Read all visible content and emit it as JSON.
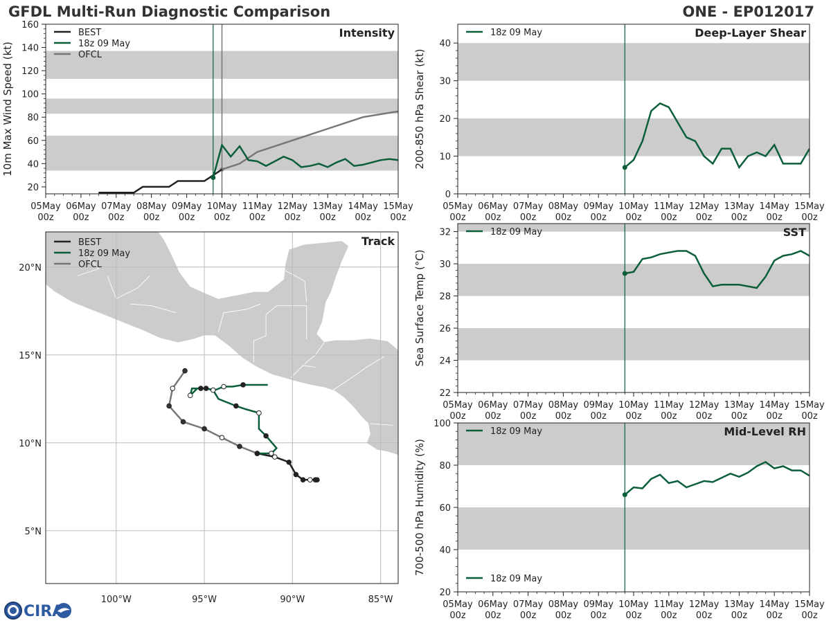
{
  "header": {
    "title": "GFDL Multi-Run Diagnostic Comparison",
    "storm_id": "ONE - EP012017"
  },
  "logo": {
    "text": "CIRA"
  },
  "colors": {
    "best": "#222222",
    "run": "#0b5e3a",
    "ofcl": "#777777",
    "band": "#cccccc",
    "land": "#cccccc"
  },
  "time_axis": {
    "ticks": [
      [
        "05May",
        "00z"
      ],
      [
        "06May",
        "00z"
      ],
      [
        "07May",
        "00z"
      ],
      [
        "08May",
        "00z"
      ],
      [
        "09May",
        "00z"
      ],
      [
        "10May",
        "00z"
      ],
      [
        "11May",
        "00z"
      ],
      [
        "12May",
        "00z"
      ],
      [
        "13May",
        "00z"
      ],
      [
        "14May",
        "00z"
      ],
      [
        "15May",
        "00z"
      ]
    ],
    "init_time": 4.75,
    "ofcl_time": 5.0
  },
  "chart_data": [
    {
      "type": "line",
      "panel": "Intensity",
      "title": "Intensity",
      "ylabel": "10m Max Wind Speed (kt)",
      "ylim": [
        14,
        160
      ],
      "yticks": [
        20,
        40,
        60,
        80,
        100,
        120,
        140,
        160
      ],
      "bands": [
        [
          34,
          64
        ],
        [
          83,
          96
        ],
        [
          113,
          137
        ]
      ],
      "legend": [
        "BEST",
        "18z 09 May",
        "OFCL"
      ],
      "series": [
        {
          "name": "BEST",
          "x": [
            1.5,
            1.75,
            2.0,
            2.25,
            2.5,
            2.75,
            3.0,
            3.25,
            3.5,
            3.75,
            4.0,
            4.25,
            4.5,
            4.75,
            5.0
          ],
          "y": [
            15,
            15,
            15,
            15,
            15,
            20,
            20,
            20,
            20,
            25,
            25,
            25,
            25,
            30,
            35
          ]
        },
        {
          "name": "18z 09 May",
          "x": [
            4.75,
            5.0,
            5.25,
            5.5,
            5.75,
            6.0,
            6.25,
            6.5,
            6.75,
            7.0,
            7.25,
            7.5,
            7.75,
            8.0,
            8.25,
            8.5,
            8.75,
            9.0,
            9.25,
            9.5,
            9.75,
            10.0
          ],
          "y": [
            28,
            56,
            46,
            55,
            43,
            42,
            38,
            42,
            46,
            43,
            37,
            38,
            40,
            37,
            41,
            44,
            38,
            39,
            41,
            43,
            44,
            43
          ]
        },
        {
          "name": "OFCL",
          "x": [
            5.0,
            5.5,
            6.0,
            7.0,
            8.0,
            9.0,
            10.0
          ],
          "y": [
            35,
            40,
            50,
            60,
            70,
            80,
            85
          ]
        }
      ]
    },
    {
      "type": "map",
      "panel": "Track",
      "title": "Track",
      "xlim": [
        -104,
        -84
      ],
      "ylim": [
        2,
        22
      ],
      "xticks": [
        -100,
        -95,
        -90,
        -85
      ],
      "xtick_labels": [
        "100°W",
        "95°W",
        "90°W",
        "85°W"
      ],
      "yticks": [
        5,
        10,
        15,
        20
      ],
      "ytick_labels": [
        "5°N",
        "10°N",
        "15°N",
        "20°N"
      ],
      "legend": [
        "BEST",
        "18z 09 May",
        "OFCL"
      ],
      "series": [
        {
          "name": "BEST",
          "lon": [
            -88.6,
            -88.7,
            -89.0,
            -89.4,
            -89.8,
            -90.2,
            -91.0,
            -92.0
          ],
          "lat": [
            7.9,
            7.9,
            7.9,
            7.9,
            8.2,
            8.9,
            9.2,
            9.4
          ]
        },
        {
          "name": "18z 09 May",
          "lon": [
            -92.0,
            -91.3,
            -91.2,
            -90.9,
            -91.5,
            -91.9,
            -91.9,
            -92.6,
            -93.2,
            -94.2,
            -94.5,
            -94.9,
            -95.2,
            -95.4,
            -95.8,
            -95.7,
            -94.9,
            -94.4,
            -93.9,
            -93.4,
            -92.8,
            -91.4
          ],
          "lat": [
            9.4,
            9.4,
            9.4,
            9.7,
            10.4,
            10.8,
            11.7,
            11.9,
            12.1,
            12.5,
            13.0,
            13.1,
            13.1,
            13.1,
            12.7,
            13.1,
            13.1,
            13.0,
            13.2,
            13.2,
            13.3,
            13.3
          ]
        },
        {
          "name": "OFCL",
          "lon": [
            -92.0,
            -93.0,
            -94.0,
            -95.0,
            -96.2,
            -97.0,
            -96.8,
            -96.1
          ],
          "lat": [
            9.4,
            9.8,
            10.3,
            10.8,
            11.2,
            12.1,
            13.1,
            14.1
          ]
        }
      ]
    },
    {
      "type": "line",
      "panel": "Deep-Layer Shear",
      "title": "Deep-Layer Shear",
      "ylabel": "200-850 hPa Shear (kt)",
      "ylim": [
        0,
        45
      ],
      "yticks": [
        0,
        10,
        20,
        30,
        40
      ],
      "bands": [
        [
          10,
          20
        ],
        [
          30,
          40
        ]
      ],
      "legend": [
        "18z 09 May"
      ],
      "series": [
        {
          "name": "18z 09 May",
          "x": [
            4.75,
            5.0,
            5.25,
            5.5,
            5.75,
            6.0,
            6.25,
            6.5,
            6.75,
            7.0,
            7.25,
            7.5,
            7.75,
            8.0,
            8.25,
            8.5,
            8.75,
            9.0,
            9.25,
            9.5,
            9.75,
            10.0
          ],
          "y": [
            7,
            9,
            14,
            22,
            24,
            23,
            19,
            15,
            14,
            10,
            8,
            12,
            12,
            7,
            10,
            11,
            10,
            13,
            8,
            8,
            8,
            12
          ]
        }
      ]
    },
    {
      "type": "line",
      "panel": "SST",
      "title": "SST",
      "ylabel": "Sea Surface Temp (°C)",
      "ylim": [
        22,
        32.5
      ],
      "yticks": [
        22,
        24,
        26,
        28,
        30,
        32
      ],
      "bands": [
        [
          24,
          26
        ],
        [
          28,
          30
        ],
        [
          32,
          33
        ]
      ],
      "legend": [
        "18z 09 May"
      ],
      "series": [
        {
          "name": "18z 09 May",
          "x": [
            4.75,
            5.0,
            5.25,
            5.5,
            5.75,
            6.0,
            6.25,
            6.5,
            6.75,
            7.0,
            7.25,
            7.5,
            7.75,
            8.0,
            8.25,
            8.5,
            8.75,
            9.0,
            9.25,
            9.5,
            9.75,
            10.0
          ],
          "y": [
            29.4,
            29.5,
            30.3,
            30.4,
            30.6,
            30.7,
            30.8,
            30.8,
            30.5,
            29.4,
            28.6,
            28.7,
            28.7,
            28.7,
            28.6,
            28.5,
            29.2,
            30.2,
            30.5,
            30.6,
            30.8,
            30.5
          ]
        }
      ]
    },
    {
      "type": "line",
      "panel": "Mid-Level RH",
      "title": "Mid-Level RH",
      "ylabel": "700-500 hPa Humidity (%)",
      "ylim": [
        20,
        100
      ],
      "yticks": [
        20,
        40,
        60,
        80,
        100
      ],
      "bands": [
        [
          40,
          60
        ],
        [
          80,
          100
        ]
      ],
      "legend": [
        "18z 09 May"
      ],
      "series": [
        {
          "name": "18z 09 May",
          "x": [
            4.75,
            5.0,
            5.25,
            5.5,
            5.75,
            6.0,
            6.25,
            6.5,
            6.75,
            7.0,
            7.25,
            7.5,
            7.75,
            8.0,
            8.25,
            8.5,
            8.75,
            9.0,
            9.25,
            9.5,
            9.75,
            10.0
          ],
          "y": [
            66,
            69.5,
            69,
            73.5,
            75.5,
            71.5,
            72.5,
            69.5,
            71,
            72.5,
            72,
            74,
            76,
            74.5,
            76.5,
            79.5,
            81.5,
            78.5,
            79.5,
            77.5,
            77.5,
            75
          ]
        }
      ]
    }
  ]
}
